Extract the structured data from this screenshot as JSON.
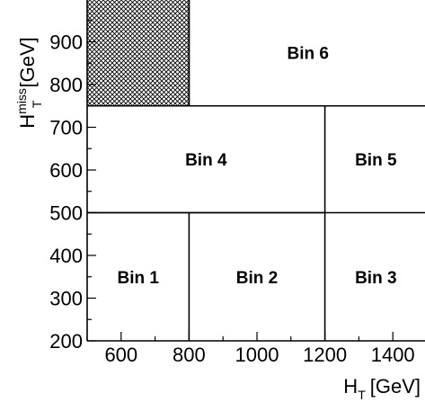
{
  "chart_data": {
    "type": "diagram",
    "x_axis": {
      "label_base": "H",
      "label_subscript": "T",
      "label_unit": "[GeV]",
      "range": [
        500,
        1500
      ],
      "ticks": [
        600,
        800,
        1000,
        1200,
        1400
      ],
      "tick_labels": [
        "600",
        "800",
        "1000",
        "1200",
        "1400"
      ]
    },
    "y_axis": {
      "label_base": "H",
      "label_subscript": "T",
      "label_superscript": "miss",
      "label_unit": "[GeV]",
      "range": [
        200,
        1000
      ],
      "ticks": [
        200,
        300,
        400,
        500,
        600,
        700,
        800,
        900
      ],
      "tick_labels": [
        "200",
        "300",
        "400",
        "500",
        "600",
        "700",
        "800",
        "900"
      ]
    },
    "bins": [
      {
        "label": "Bin 1",
        "x_min": 500,
        "x_max": 800,
        "y_min": 200,
        "y_max": 500
      },
      {
        "label": "Bin 2",
        "x_min": 800,
        "x_max": 1200,
        "y_min": 200,
        "y_max": 500
      },
      {
        "label": "Bin 3",
        "x_min": 1200,
        "x_max": 1500,
        "y_min": 200,
        "y_max": 500
      },
      {
        "label": "Bin 4",
        "x_min": 500,
        "x_max": 1200,
        "y_min": 500,
        "y_max": 750
      },
      {
        "label": "Bin 5",
        "x_min": 1200,
        "x_max": 1500,
        "y_min": 500,
        "y_max": 750
      },
      {
        "label": "Bin 6",
        "x_min": 800,
        "x_max": 1500,
        "y_min": 750,
        "y_max": 1000
      }
    ],
    "excluded_region": {
      "pattern": "crosshatch",
      "x_min": 500,
      "x_max": 800,
      "y_min": 750,
      "y_max": 1000
    },
    "colors": {
      "lines": "#000000",
      "hatch": "#000000",
      "background": "#ffffff"
    }
  }
}
